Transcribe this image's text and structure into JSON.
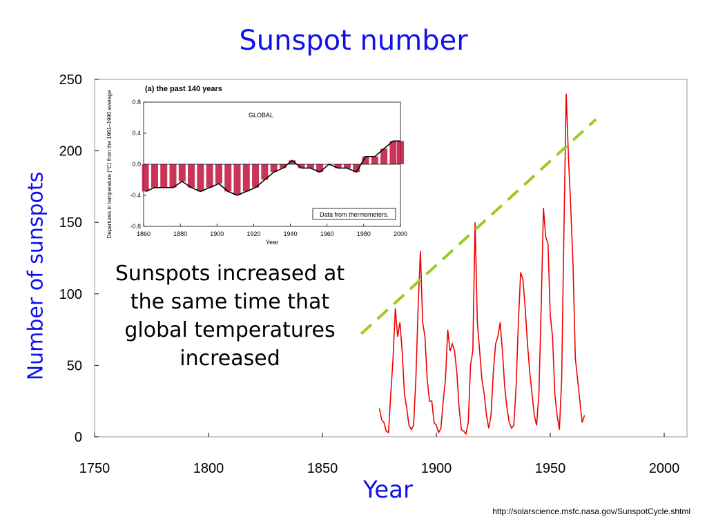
{
  "title": "Sunspot number",
  "url": "http://solarscience.msfc.nasa.gov/SunspotCycle.shtml",
  "annotation": "Sunspots increased at the same time that global temperatures increased",
  "colors": {
    "title": "#1010ee",
    "series": "#ee0000",
    "trend": "#99cc22",
    "inset_bar": "#c0103c"
  },
  "chart_data": [
    {
      "type": "line",
      "title": "",
      "xlabel": "Year",
      "ylabel": "Number of sunspots",
      "xlim": [
        1750,
        2010
      ],
      "ylim": [
        0,
        250
      ],
      "xticks": [
        1750,
        1800,
        1850,
        1900,
        1950,
        2000
      ],
      "yticks": [
        0,
        50,
        100,
        150,
        200,
        250
      ],
      "grid": false,
      "series": [
        {
          "x": [
            1875,
            1876,
            1877,
            1878,
            1879,
            1880,
            1881,
            1882,
            1883,
            1884,
            1885,
            1886,
            1887,
            1888,
            1889,
            1890,
            1891,
            1892,
            1893,
            1894,
            1895,
            1896,
            1897,
            1898,
            1899,
            1900,
            1901,
            1902,
            1903,
            1904,
            1905,
            1906,
            1907,
            1908,
            1909,
            1910,
            1911,
            1912,
            1913,
            1914,
            1915,
            1916,
            1917,
            1918,
            1919,
            1920,
            1921,
            1922,
            1923,
            1924,
            1925,
            1926,
            1927,
            1928,
            1929,
            1930,
            1931,
            1932,
            1933,
            1934,
            1935,
            1936,
            1937,
            1938,
            1939,
            1940,
            1941,
            1942,
            1943,
            1944,
            1945,
            1946,
            1947,
            1948,
            1949,
            1950,
            1951,
            1952,
            1953,
            1954,
            1955,
            1956,
            1957,
            1958,
            1959,
            1960,
            1961,
            1962,
            1963,
            1964,
            1965
          ],
          "y": [
            20,
            12,
            10,
            4,
            3,
            30,
            55,
            90,
            70,
            80,
            60,
            30,
            20,
            8,
            5,
            8,
            40,
            90,
            130,
            80,
            70,
            40,
            25,
            25,
            10,
            8,
            3,
            6,
            25,
            40,
            75,
            60,
            65,
            60,
            45,
            20,
            5,
            4,
            2,
            10,
            50,
            60,
            150,
            80,
            60,
            40,
            30,
            15,
            6,
            15,
            45,
            65,
            70,
            80,
            60,
            35,
            20,
            10,
            6,
            8,
            35,
            80,
            115,
            110,
            90,
            65,
            45,
            30,
            15,
            8,
            30,
            90,
            160,
            140,
            135,
            85,
            70,
            30,
            15,
            5,
            40,
            145,
            240,
            195,
            160,
            120,
            55,
            40,
            25,
            10,
            15
          ]
        }
      ],
      "trendline": {
        "x": [
          1867,
          1970
        ],
        "y": [
          72,
          222
        ]
      }
    },
    {
      "type": "bar",
      "title": "(a) the past 140 years",
      "xlabel": "Year",
      "ylabel": "Departures in temperature (°C) from the 1961–1990 average",
      "region_label": "GLOBAL",
      "legend_note": "Data from thermometers.",
      "xlim": [
        1860,
        2000
      ],
      "ylim": [
        -0.8,
        0.8
      ],
      "xticks": [
        1860,
        1880,
        1900,
        1920,
        1940,
        1960,
        1980,
        2000
      ],
      "yticks": [
        -0.8,
        -0.4,
        0.0,
        0.4,
        0.8
      ],
      "x": [
        1861,
        1866,
        1871,
        1876,
        1881,
        1886,
        1891,
        1896,
        1901,
        1906,
        1911,
        1916,
        1921,
        1926,
        1931,
        1936,
        1941,
        1946,
        1951,
        1956,
        1961,
        1966,
        1971,
        1976,
        1981,
        1986,
        1991,
        1996,
        2000
      ],
      "values": [
        -0.35,
        -0.3,
        -0.3,
        -0.3,
        -0.22,
        -0.3,
        -0.35,
        -0.3,
        -0.25,
        -0.35,
        -0.4,
        -0.35,
        -0.3,
        -0.2,
        -0.1,
        -0.05,
        0.05,
        -0.05,
        -0.05,
        -0.1,
        0.0,
        -0.05,
        -0.05,
        -0.1,
        0.1,
        0.1,
        0.2,
        0.3,
        0.3
      ]
    }
  ]
}
